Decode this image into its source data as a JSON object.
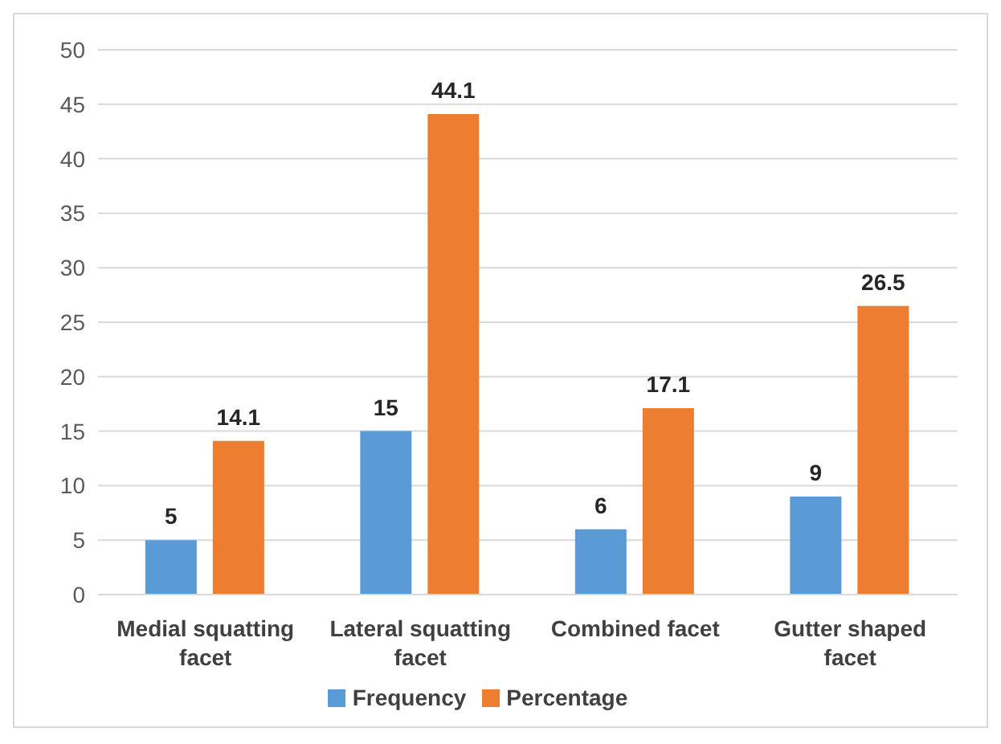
{
  "chart_data": {
    "type": "bar",
    "categories": [
      "Medial squatting facet",
      "Lateral squatting facet",
      "Combined facet",
      "Gutter shaped facet"
    ],
    "series": [
      {
        "name": "Frequency",
        "color": "#5b9bd5",
        "values": [
          5,
          15,
          6,
          9
        ]
      },
      {
        "name": "Percentage",
        "color": "#ed7d31",
        "values": [
          14.1,
          44.1,
          17.1,
          26.5
        ]
      }
    ],
    "ylim": [
      0,
      50
    ],
    "yticks": [
      0,
      5,
      10,
      15,
      20,
      25,
      30,
      35,
      40,
      45,
      50
    ],
    "grid": "y",
    "legend": "bottom",
    "data_labels": true
  }
}
